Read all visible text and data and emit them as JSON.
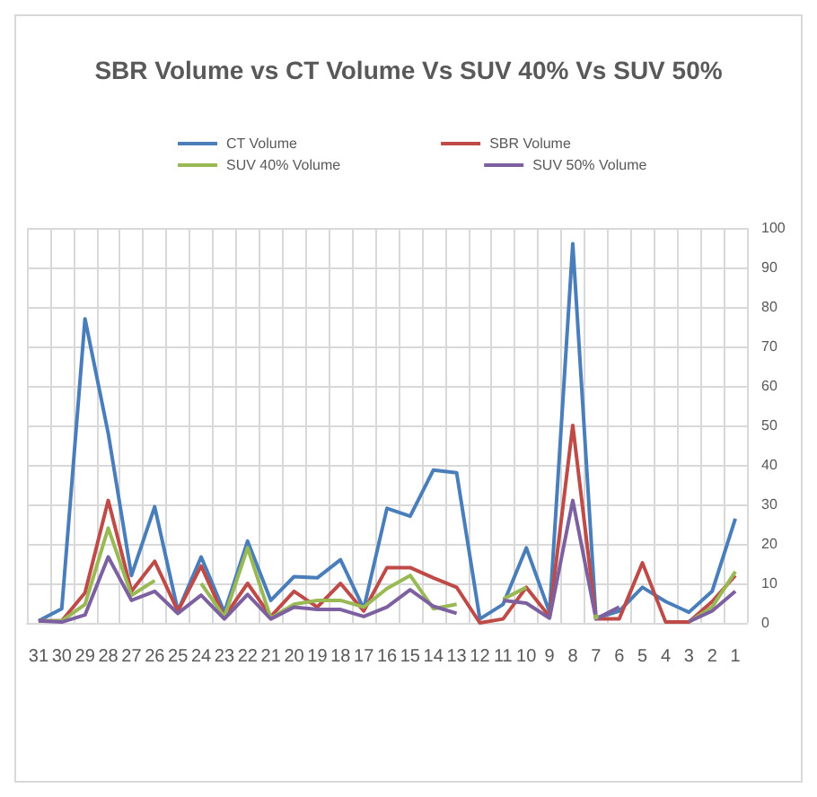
{
  "chart_data": {
    "type": "line",
    "title": "SBR Volume vs CT Volume Vs SUV 40% Vs SUV 50%",
    "categories": [
      "31",
      "30",
      "29",
      "28",
      "27",
      "26",
      "25",
      "24",
      "23",
      "22",
      "21",
      "20",
      "19",
      "18",
      "17",
      "16",
      "15",
      "14",
      "13",
      "12",
      "11",
      "10",
      "9",
      "8",
      "7",
      "6",
      "5",
      "4",
      "3",
      "2",
      "1"
    ],
    "series": [
      {
        "name": "CT Volume",
        "color": "#4a7ebb",
        "values": [
          0.5,
          3.6,
          77,
          48,
          12,
          29.4,
          3,
          16.7,
          2.7,
          20.7,
          5.7,
          11.7,
          11.4,
          16,
          3.6,
          29,
          27,
          38.7,
          38,
          1,
          4.7,
          19,
          2.7,
          96,
          1.2,
          3,
          9,
          5.4,
          2.7,
          8,
          26.4
        ]
      },
      {
        "name": "SBR Volume",
        "color": "#be4b48",
        "values": [
          0.5,
          0.5,
          7.6,
          31,
          8,
          15.6,
          3,
          14.4,
          1.5,
          10,
          1.6,
          8,
          4,
          10,
          3,
          14,
          14,
          11.4,
          9,
          0,
          1,
          9,
          1.6,
          50,
          1,
          1,
          15.2,
          0.2,
          0.2,
          5.4,
          12
        ]
      },
      {
        "name": "SUV 40% Volume",
        "color": "#98b954",
        "values": [
          0.5,
          0.5,
          4.7,
          24,
          7,
          10.7,
          null,
          10,
          1.5,
          19,
          1.2,
          4.7,
          5.7,
          5.7,
          4,
          8.7,
          12,
          3.6,
          4.7,
          null,
          6,
          9,
          null,
          null,
          1.5,
          null,
          null,
          null,
          0.2,
          4,
          13
        ]
      },
      {
        "name": "SUV 50% Volume",
        "color": "#7d60a0",
        "values": [
          0.5,
          0.2,
          2,
          16.7,
          5.7,
          8,
          2.4,
          7,
          1,
          7.2,
          1,
          4,
          3.4,
          3.4,
          1.6,
          4,
          8.4,
          4.2,
          2.4,
          null,
          5.7,
          5,
          1.2,
          31,
          1,
          4,
          null,
          null,
          0.3,
          3,
          8
        ]
      }
    ],
    "ylim": [
      0,
      100
    ],
    "yticks": [
      0,
      10,
      20,
      30,
      40,
      50,
      60,
      70,
      80,
      90,
      100
    ],
    "grid": true,
    "legend": "top",
    "marker": "none",
    "line_style": "solid"
  }
}
